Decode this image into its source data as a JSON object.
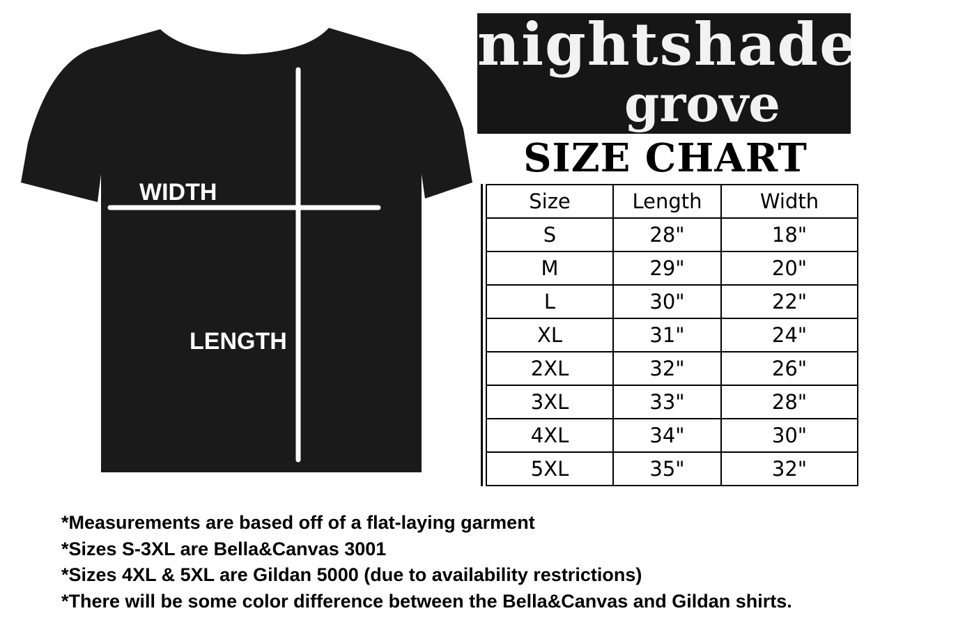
{
  "brand": {
    "logo_text": "nightshade grove",
    "logo_line1": "nightshade",
    "logo_line2": "grove"
  },
  "title": "SIZE CHART",
  "shirt": {
    "width_label": "WIDTH",
    "length_label": "LENGTH",
    "shirt_color": "#1a1a1a"
  },
  "table": {
    "headers": [
      "Size",
      "Length",
      "Width"
    ],
    "rows": [
      [
        "S",
        "28\"",
        "18\""
      ],
      [
        "M",
        "29\"",
        "20\""
      ],
      [
        "L",
        "30\"",
        "22\""
      ],
      [
        "XL",
        "31\"",
        "24\""
      ],
      [
        "2XL",
        "32\"",
        "26\""
      ],
      [
        "3XL",
        "33\"",
        "28\""
      ],
      [
        "4XL",
        "34\"",
        "30\""
      ],
      [
        "5XL",
        "35\"",
        "32\""
      ]
    ]
  },
  "notes": [
    "*Measurements are based off of a flat-laying garment",
    "*Sizes S-3XL are Bella&Canvas 3001",
    "*Sizes 4XL & 5XL are Gildan 5000 (due to availability restrictions)",
    "*There will be some color difference between the Bella&Canvas and Gildan shirts."
  ]
}
